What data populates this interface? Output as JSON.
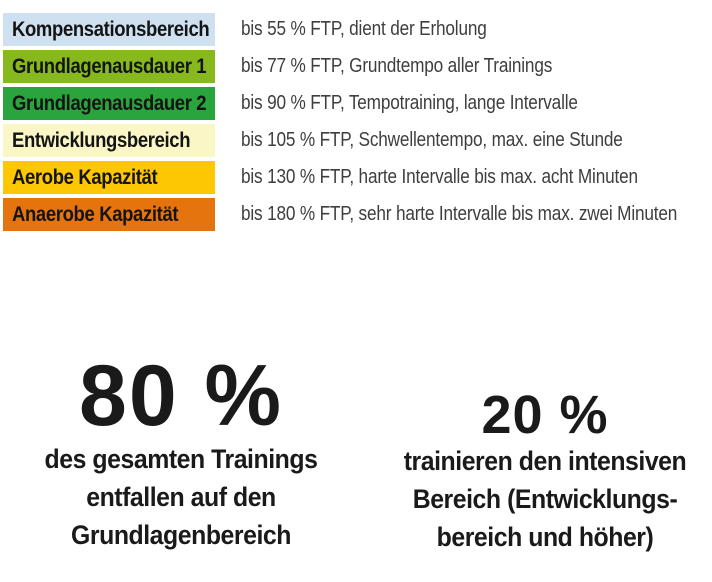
{
  "zones_table": {
    "rows": [
      {
        "label": "Kompensationsbereich",
        "color": "#cfe0f0",
        "description": "bis 55 % FTP, dient der Erholung"
      },
      {
        "label": "Grundlagenausdauer 1",
        "color": "#87b91f",
        "description": "bis 77 % FTP, Grundtempo aller Trainings"
      },
      {
        "label": "Grundlagenausdauer 2",
        "color": "#2aa43c",
        "description": "bis 90 % FTP, Tempotraining, lange Intervalle"
      },
      {
        "label": "Entwicklungsbereich",
        "color": "#faf6c5",
        "description": "bis 105 % FTP, Schwellentempo, max. eine Stunde"
      },
      {
        "label": "Aerobe Kapazität",
        "color": "#fdc703",
        "description": "bis 130 % FTP, harte Intervalle bis max. acht Minuten"
      },
      {
        "label": "Anaerobe Kapazität",
        "color": "#e5740f",
        "description": "bis 180 % FTP, sehr harte Intervalle bis max. zwei Minuten"
      }
    ]
  },
  "stats": [
    {
      "value": "80 %",
      "lines": [
        "des gesamten Trainings",
        "entfallen auf den",
        "Grundlagenbereich"
      ]
    },
    {
      "value": "20 %",
      "lines": [
        "trainieren den intensiven",
        "Bereich (Entwicklungs-",
        "bereich und höher)"
      ]
    }
  ],
  "colors": {
    "label_text": "#141414",
    "description_text": "#3e3e3e",
    "stat_text": "#1a1a1a",
    "background": "#ffffff"
  }
}
